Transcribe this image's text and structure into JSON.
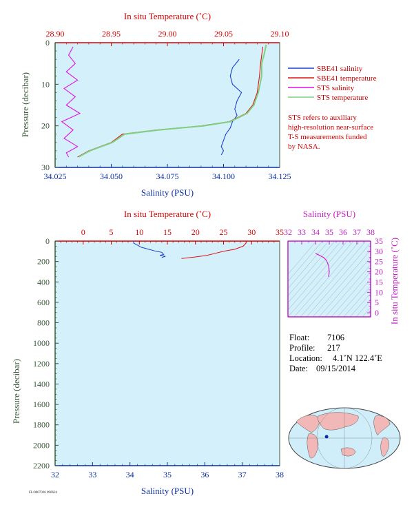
{
  "chart_data": [
    {
      "type": "line",
      "title": "",
      "x_top_label": "In situ Temperature (˚C)",
      "x_top_range": [
        28.9,
        29.1
      ],
      "x_top_ticks": [
        "28.90",
        "28.95",
        "29.00",
        "29.05",
        "29.10"
      ],
      "x_bottom_label": "Salinity (PSU)",
      "x_bottom_range": [
        34.025,
        34.125
      ],
      "x_bottom_ticks": [
        "34.025",
        "34.050",
        "34.075",
        "34.100",
        "34.125"
      ],
      "ylabel": "Pressure (decibar)",
      "ylim": [
        0,
        30
      ],
      "y_ticks": [
        "0",
        "10",
        "20",
        "30"
      ],
      "y_inverted": true,
      "legend": {
        "position": "right",
        "entries": [
          {
            "name": "SBE41 salinity",
            "color": "#1a3fd0"
          },
          {
            "name": "SBE41 temperature",
            "color": "#e01010"
          },
          {
            "name": "STS salinity",
            "color": "#e010e0"
          },
          {
            "name": "STS temperature",
            "color": "#80d080"
          }
        ]
      },
      "note": [
        "STS refers to auxiliary",
        "high-resolution near-surface",
        "T-S measurements funded",
        "by NASA."
      ],
      "series": [
        {
          "name": "SBE41 salinity",
          "axis": "salinity",
          "color": "#1a3fd0",
          "x": [
            34.107,
            34.104,
            34.103,
            34.104,
            34.108,
            34.106,
            34.105,
            34.106,
            34.104,
            34.103,
            34.101,
            34.1,
            34.099,
            34.1,
            34.099
          ],
          "y": [
            4.0,
            6.0,
            8.0,
            10.0,
            12.0,
            14.0,
            16.0,
            17.5,
            19.0,
            20.5,
            22.0,
            23.5,
            25.0,
            26.0,
            27.0
          ]
        },
        {
          "name": "SBE41 temperature",
          "axis": "temperature",
          "color": "#e01010",
          "x": [
            29.085,
            29.083,
            29.082,
            29.08,
            29.076,
            29.07,
            29.055,
            29.03,
            28.99,
            28.96,
            28.95,
            28.93,
            28.92
          ],
          "y": [
            1.0,
            5.0,
            8.0,
            12.0,
            15.0,
            17.0,
            19.0,
            20.0,
            21.0,
            22.0,
            24.0,
            26.0,
            27.5
          ]
        },
        {
          "name": "STS salinity",
          "axis": "salinity",
          "color": "#e010e0",
          "x": [
            34.033,
            34.031,
            34.034,
            34.03,
            34.035,
            34.029,
            34.034,
            34.03,
            34.036,
            34.028,
            34.033,
            34.029,
            34.035,
            34.03,
            34.031
          ],
          "y": [
            1.0,
            3.0,
            5.0,
            7.0,
            9.0,
            11.0,
            13.0,
            15.0,
            17.0,
            19.0,
            21.0,
            23.0,
            25.0,
            26.5,
            27.5
          ]
        },
        {
          "name": "STS temperature",
          "axis": "temperature",
          "color": "#80d080",
          "x": [
            29.088,
            29.086,
            29.084,
            29.084,
            29.081,
            29.077,
            29.071,
            29.056,
            29.032,
            28.992,
            28.962,
            28.951,
            28.931,
            28.921
          ],
          "y": [
            0.5,
            3.0,
            5.0,
            8.0,
            12.0,
            15.0,
            17.0,
            19.0,
            20.0,
            21.0,
            22.0,
            24.0,
            26.0,
            27.5
          ]
        }
      ]
    },
    {
      "type": "line",
      "title": "",
      "x_top_label": "In situ Temperature (˚C)",
      "x_top_range": [
        -5,
        35
      ],
      "x_top_ticks": [
        "0",
        "5",
        "10",
        "15",
        "20",
        "25",
        "30",
        "35"
      ],
      "x_bottom_label": "Salinity (PSU)",
      "x_bottom_range": [
        32,
        38
      ],
      "x_bottom_ticks": [
        "32",
        "33",
        "34",
        "35",
        "36",
        "37",
        "38"
      ],
      "ylabel": "Pressure (decibar)",
      "ylim": [
        0,
        2200
      ],
      "y_ticks": [
        "0",
        "200",
        "400",
        "600",
        "800",
        "1000",
        "1200",
        "1400",
        "1600",
        "1800",
        "2000",
        "2200"
      ],
      "y_inverted": true,
      "series": [
        {
          "name": "salinity",
          "axis": "salinity",
          "color": "#1a3fd0",
          "x": [
            34.1,
            34.1,
            34.3,
            34.5,
            34.7,
            34.85,
            34.9,
            34.8,
            34.95,
            34.85
          ],
          "y": [
            0,
            20,
            60,
            80,
            100,
            110,
            130,
            140,
            150,
            160
          ]
        },
        {
          "name": "temperature",
          "axis": "temperature",
          "color": "#e01010",
          "x": [
            29.1,
            29.0,
            28.5,
            27.0,
            25.0,
            23.5,
            22.0,
            20.0,
            18.5,
            17.5
          ],
          "y": [
            0,
            20,
            50,
            80,
            100,
            120,
            140,
            155,
            165,
            170
          ]
        }
      ]
    },
    {
      "type": "scatter",
      "title": "",
      "x_top_label": "Salinity (PSU)",
      "x_ticks": [
        "32",
        "33",
        "34",
        "35",
        "36",
        "37",
        "38"
      ],
      "xlim": [
        32,
        38
      ],
      "ylabel": "In situ Temperature (˚C)",
      "y_ticks": [
        "0",
        "5",
        "10",
        "15",
        "20",
        "25",
        "30",
        "35"
      ],
      "ylim": [
        -2,
        35
      ],
      "series": [
        {
          "name": "T-S",
          "color": "#d020d0",
          "x": [
            34.0,
            34.3,
            34.6,
            34.8,
            34.95,
            35.0,
            34.95
          ],
          "y": [
            29.0,
            28.0,
            27.0,
            25.5,
            23.0,
            20.0,
            17.5
          ]
        }
      ]
    }
  ],
  "info": {
    "float_label": "Float:",
    "float_value": "7106",
    "profile_label": "Profile:",
    "profile_value": "217",
    "location_label": "Location:",
    "location_value": "4.1˚N  122.4˚E",
    "date_label": "Date:",
    "date_value": "09/15/2014"
  },
  "map": {
    "marker_lat": 4.1,
    "marker_lon": 122.4,
    "land_color": "#f2b8b8",
    "ocean_color": "#cfeefa"
  },
  "footer": {
    "text": "FL/0007026 090624"
  },
  "colors": {
    "plot_bg": "#d4f1fb",
    "red_axis": "#d40000",
    "blue_axis": "#0a2fa0",
    "magenta_axis": "#c020c0"
  }
}
